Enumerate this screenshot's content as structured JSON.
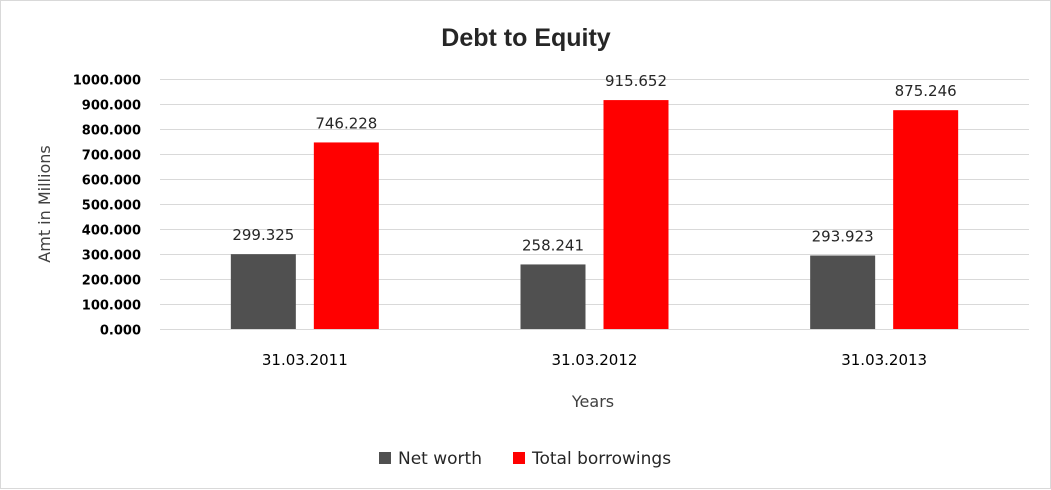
{
  "colors": {
    "net_worth": "#505050",
    "total_borrowings": "#ff0000",
    "gridline": "#d9d9d9",
    "border": "#d9d9d9"
  },
  "chart_data": {
    "type": "bar",
    "title": "Debt to Equity",
    "xlabel": "Years",
    "ylabel": "Amt in Millions",
    "categories": [
      "31.03.2011",
      "31.03.2012",
      "31.03.2013"
    ],
    "series": [
      {
        "name": "Net worth",
        "values": [
          299.325,
          258.241,
          293.923
        ],
        "labels": [
          "299.325",
          "258.241",
          "293.923"
        ],
        "color": "#505050"
      },
      {
        "name": "Total borrowings",
        "values": [
          746.228,
          915.652,
          875.246
        ],
        "labels": [
          "746.228",
          "915.652",
          "875.246"
        ],
        "color": "#ff0000"
      }
    ],
    "ylim": [
      0,
      1000
    ],
    "yticks": [
      "0.000",
      "100.000",
      "200.000",
      "300.000",
      "400.000",
      "500.000",
      "600.000",
      "700.000",
      "800.000",
      "900.000",
      "1000.000"
    ],
    "grid": true,
    "legend_position": "bottom"
  }
}
